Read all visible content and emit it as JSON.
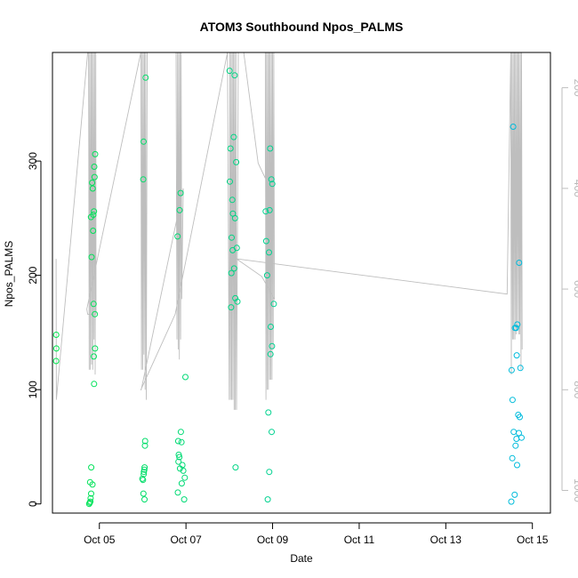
{
  "chart_data": {
    "type": "scatter",
    "title": "ATOM3 Southbound Npos_PALMS",
    "xlabel": "Date",
    "ylabel": "Npos_PALMS",
    "xlim": [
      "2017-10-03T22:00",
      "2017-10-15T10:00"
    ],
    "ylim": [
      -8,
      395
    ],
    "x_ticks": [
      {
        "date": "2017-10-05",
        "label": "Oct 05"
      },
      {
        "date": "2017-10-07",
        "label": "Oct 07"
      },
      {
        "date": "2017-10-09",
        "label": "Oct 09"
      },
      {
        "date": "2017-10-11",
        "label": "Oct 11"
      },
      {
        "date": "2017-10-13",
        "label": "Oct 13"
      },
      {
        "date": "2017-10-15",
        "label": "Oct 15"
      }
    ],
    "y_ticks": [
      0,
      100,
      200,
      300
    ],
    "secondary_axis": {
      "side": "right",
      "reversed": true,
      "ylim": [
        1045,
        130
      ],
      "ticks": [
        200,
        400,
        600,
        800,
        1000
      ],
      "color": "#bebebe"
    },
    "color_scale": [
      "#00e64d",
      "#00b8e6"
    ],
    "points": [
      {
        "x": "2017-10-04T00:05",
        "y": 148
      },
      {
        "x": "2017-10-04T00:10",
        "y": 136
      },
      {
        "x": "2017-10-04T00:02",
        "y": 125
      },
      {
        "x": "2017-10-04T18:20",
        "y": 0
      },
      {
        "x": "2017-10-04T18:40",
        "y": 1
      },
      {
        "x": "2017-10-04T19:00",
        "y": 2
      },
      {
        "x": "2017-10-04T19:10",
        "y": 5
      },
      {
        "x": "2017-10-04T19:25",
        "y": 9
      },
      {
        "x": "2017-10-04T18:50",
        "y": 19
      },
      {
        "x": "2017-10-04T20:10",
        "y": 17
      },
      {
        "x": "2017-10-04T19:30",
        "y": 32
      },
      {
        "x": "2017-10-04T19:20",
        "y": 251
      },
      {
        "x": "2017-10-04T19:40",
        "y": 216
      },
      {
        "x": "2017-10-04T20:00",
        "y": 281
      },
      {
        "x": "2017-10-04T20:20",
        "y": 276
      },
      {
        "x": "2017-10-04T20:40",
        "y": 253
      },
      {
        "x": "2017-10-04T21:00",
        "y": 256
      },
      {
        "x": "2017-10-04T20:30",
        "y": 239
      },
      {
        "x": "2017-10-04T21:20",
        "y": 286
      },
      {
        "x": "2017-10-04T21:10",
        "y": 295
      },
      {
        "x": "2017-10-04T21:40",
        "y": 306
      },
      {
        "x": "2017-10-04T20:50",
        "y": 175
      },
      {
        "x": "2017-10-04T21:30",
        "y": 166
      },
      {
        "x": "2017-10-04T21:35",
        "y": 136
      },
      {
        "x": "2017-10-04T20:55",
        "y": 129
      },
      {
        "x": "2017-10-04T21:05",
        "y": 105
      },
      {
        "x": "2017-10-06T00:20",
        "y": 284
      },
      {
        "x": "2017-10-06T00:30",
        "y": 317
      },
      {
        "x": "2017-10-06T01:40",
        "y": 373
      },
      {
        "x": "2017-10-06T00:10",
        "y": 21
      },
      {
        "x": "2017-10-06T00:40",
        "y": 28
      },
      {
        "x": "2017-10-06T00:55",
        "y": 30
      },
      {
        "x": "2017-10-06T01:05",
        "y": 32
      },
      {
        "x": "2017-10-06T00:25",
        "y": 9
      },
      {
        "x": "2017-10-06T01:00",
        "y": 4
      },
      {
        "x": "2017-10-06T01:20",
        "y": 55
      },
      {
        "x": "2017-10-06T01:15",
        "y": 51
      },
      {
        "x": "2017-10-05T23:50",
        "y": 22
      },
      {
        "x": "2017-10-06T00:35",
        "y": 26
      },
      {
        "x": "2017-10-06T19:20",
        "y": 234
      },
      {
        "x": "2017-10-06T20:30",
        "y": 257
      },
      {
        "x": "2017-10-06T21:00",
        "y": 272
      },
      {
        "x": "2017-10-06T23:40",
        "y": 111
      },
      {
        "x": "2017-10-06T19:40",
        "y": 55
      },
      {
        "x": "2017-10-06T21:10",
        "y": 63
      },
      {
        "x": "2017-10-06T21:30",
        "y": 54
      },
      {
        "x": "2017-10-06T20:00",
        "y": 43
      },
      {
        "x": "2017-10-06T20:20",
        "y": 41
      },
      {
        "x": "2017-10-06T19:50",
        "y": 37
      },
      {
        "x": "2017-10-06T20:40",
        "y": 31
      },
      {
        "x": "2017-10-06T22:00",
        "y": 34
      },
      {
        "x": "2017-10-06T22:30",
        "y": 29
      },
      {
        "x": "2017-10-06T23:20",
        "y": 23
      },
      {
        "x": "2017-10-06T21:40",
        "y": 18
      },
      {
        "x": "2017-10-06T19:30",
        "y": 10
      },
      {
        "x": "2017-10-06T23:00",
        "y": 4
      },
      {
        "x": "2017-10-08T00:10",
        "y": 379
      },
      {
        "x": "2017-10-08T03:00",
        "y": 375
      },
      {
        "x": "2017-10-08T02:30",
        "y": 321
      },
      {
        "x": "2017-10-08T00:40",
        "y": 311
      },
      {
        "x": "2017-10-08T03:50",
        "y": 299
      },
      {
        "x": "2017-10-08T00:20",
        "y": 282
      },
      {
        "x": "2017-10-08T01:40",
        "y": 266
      },
      {
        "x": "2017-10-08T02:00",
        "y": 254
      },
      {
        "x": "2017-10-08T03:10",
        "y": 250
      },
      {
        "x": "2017-10-08T01:20",
        "y": 233
      },
      {
        "x": "2017-10-08T01:50",
        "y": 222
      },
      {
        "x": "2017-10-08T04:10",
        "y": 224
      },
      {
        "x": "2017-10-08T02:40",
        "y": 206
      },
      {
        "x": "2017-10-08T01:10",
        "y": 202
      },
      {
        "x": "2017-10-08T03:20",
        "y": 180
      },
      {
        "x": "2017-10-08T04:30",
        "y": 177
      },
      {
        "x": "2017-10-08T01:00",
        "y": 172
      },
      {
        "x": "2017-10-08T03:30",
        "y": 32
      },
      {
        "x": "2017-10-08T20:10",
        "y": 256
      },
      {
        "x": "2017-10-08T20:30",
        "y": 230
      },
      {
        "x": "2017-10-08T22:40",
        "y": 311
      },
      {
        "x": "2017-10-08T23:20",
        "y": 284
      },
      {
        "x": "2017-10-08T23:50",
        "y": 280
      },
      {
        "x": "2017-10-08T22:20",
        "y": 257
      },
      {
        "x": "2017-10-08T22:00",
        "y": 220
      },
      {
        "x": "2017-10-08T21:00",
        "y": 200
      },
      {
        "x": "2017-10-09T00:40",
        "y": 175
      },
      {
        "x": "2017-10-08T23:00",
        "y": 155
      },
      {
        "x": "2017-10-08T23:40",
        "y": 138
      },
      {
        "x": "2017-10-08T22:50",
        "y": 131
      },
      {
        "x": "2017-10-08T21:40",
        "y": 80
      },
      {
        "x": "2017-10-08T23:30",
        "y": 63
      },
      {
        "x": "2017-10-08T22:10",
        "y": 28
      },
      {
        "x": "2017-10-08T21:20",
        "y": 4
      },
      {
        "x": "2017-10-14T13:20",
        "y": 330
      },
      {
        "x": "2017-10-14T16:40",
        "y": 211
      },
      {
        "x": "2017-10-14T14:20",
        "y": 154
      },
      {
        "x": "2017-10-14T15:00",
        "y": 154
      },
      {
        "x": "2017-10-14T15:40",
        "y": 157
      },
      {
        "x": "2017-10-14T15:20",
        "y": 130
      },
      {
        "x": "2017-10-14T17:20",
        "y": 119
      },
      {
        "x": "2017-10-14T12:30",
        "y": 117
      },
      {
        "x": "2017-10-14T13:00",
        "y": 91
      },
      {
        "x": "2017-10-14T16:10",
        "y": 78
      },
      {
        "x": "2017-10-14T17:00",
        "y": 76
      },
      {
        "x": "2017-10-14T13:40",
        "y": 63
      },
      {
        "x": "2017-10-14T16:30",
        "y": 62
      },
      {
        "x": "2017-10-14T18:00",
        "y": 58
      },
      {
        "x": "2017-10-14T15:10",
        "y": 57
      },
      {
        "x": "2017-10-14T14:40",
        "y": 51
      },
      {
        "x": "2017-10-14T12:50",
        "y": 40
      },
      {
        "x": "2017-10-14T15:30",
        "y": 34
      },
      {
        "x": "2017-10-14T14:10",
        "y": 8
      },
      {
        "x": "2017-10-14T12:20",
        "y": 2
      }
    ],
    "secondary_line": {
      "axis": "right",
      "color": "#bebebe",
      "points": [
        [
          "2017-10-04T00:00",
          540
        ],
        [
          "2017-10-04T00:10",
          820
        ],
        [
          "2017-10-04T17:30",
          130
        ],
        [
          "2017-10-04T18:00",
          130
        ],
        [
          "2017-10-04T18:20",
          760
        ],
        [
          "2017-10-04T18:40",
          130
        ],
        [
          "2017-10-04T19:00",
          760
        ],
        [
          "2017-10-04T19:20",
          130
        ],
        [
          "2017-10-04T19:40",
          750
        ],
        [
          "2017-10-04T20:00",
          130
        ],
        [
          "2017-10-04T20:20",
          760
        ],
        [
          "2017-10-04T20:40",
          130
        ],
        [
          "2017-10-04T21:00",
          700
        ],
        [
          "2017-10-04T21:20",
          130
        ],
        [
          "2017-10-04T21:40",
          770
        ],
        [
          "2017-10-04T22:00",
          130
        ],
        [
          "2017-10-04T22:10",
          650
        ],
        [
          "2017-10-04T17:30",
          650
        ],
        [
          "2017-10-04T17:00",
          640
        ],
        [
          "2017-10-05T23:00",
          130
        ],
        [
          "2017-10-05T23:20",
          760
        ],
        [
          "2017-10-05T23:40",
          130
        ],
        [
          "2017-10-06T00:00",
          760
        ],
        [
          "2017-10-06T00:20",
          130
        ],
        [
          "2017-10-06T00:40",
          730
        ],
        [
          "2017-10-06T01:00",
          130
        ],
        [
          "2017-10-06T01:20",
          800
        ],
        [
          "2017-10-06T01:40",
          130
        ],
        [
          "2017-10-06T02:00",
          820
        ],
        [
          "2017-10-06T02:30",
          130
        ],
        [
          "2017-10-06T18:30",
          130
        ],
        [
          "2017-10-06T19:00",
          700
        ],
        [
          "2017-10-06T19:20",
          130
        ],
        [
          "2017-10-06T19:40",
          720
        ],
        [
          "2017-10-06T20:00",
          130
        ],
        [
          "2017-10-06T20:20",
          740
        ],
        [
          "2017-10-06T20:40",
          130
        ],
        [
          "2017-10-06T21:00",
          700
        ],
        [
          "2017-10-06T21:20",
          130
        ],
        [
          "2017-10-06T21:40",
          620
        ],
        [
          "2017-10-06T22:10",
          480
        ],
        [
          "2017-10-06T22:30",
          400
        ],
        [
          "2017-10-05T23:10",
          800
        ],
        [
          "2017-10-05T23:00",
          800
        ],
        [
          "2017-10-06T18:00",
          650
        ],
        [
          "2017-10-07T23:00",
          130
        ],
        [
          "2017-10-08T00:00",
          820
        ],
        [
          "2017-10-08T00:20",
          130
        ],
        [
          "2017-10-08T00:40",
          820
        ],
        [
          "2017-10-08T01:00",
          130
        ],
        [
          "2017-10-08T01:20",
          820
        ],
        [
          "2017-10-08T01:40",
          130
        ],
        [
          "2017-10-08T02:00",
          820
        ],
        [
          "2017-10-08T02:20",
          130
        ],
        [
          "2017-10-08T02:40",
          840
        ],
        [
          "2017-10-08T03:00",
          130
        ],
        [
          "2017-10-08T03:20",
          840
        ],
        [
          "2017-10-08T03:40",
          130
        ],
        [
          "2017-10-08T04:00",
          840
        ],
        [
          "2017-10-08T05:00",
          130
        ],
        [
          "2017-10-08T08:00",
          130
        ],
        [
          "2017-10-08T16:00",
          350
        ],
        [
          "2017-10-08T20:00",
          380
        ],
        [
          "2017-10-08T20:00",
          130
        ],
        [
          "2017-10-08T20:20",
          820
        ],
        [
          "2017-10-08T20:40",
          130
        ],
        [
          "2017-10-08T21:00",
          800
        ],
        [
          "2017-10-08T21:20",
          130
        ],
        [
          "2017-10-08T21:40",
          800
        ],
        [
          "2017-10-08T22:00",
          130
        ],
        [
          "2017-10-08T22:20",
          780
        ],
        [
          "2017-10-08T22:40",
          130
        ],
        [
          "2017-10-08T23:00",
          780
        ],
        [
          "2017-10-08T23:20",
          130
        ],
        [
          "2017-10-08T23:40",
          780
        ],
        [
          "2017-10-09T00:00",
          130
        ],
        [
          "2017-10-09T00:20",
          720
        ],
        [
          "2017-10-09T00:40",
          130
        ],
        [
          "2017-10-09T01:00",
          620
        ],
        [
          "2017-10-08T18:00",
          575
        ],
        [
          "2017-10-08T04:00",
          540
        ],
        [
          "2017-10-14T10:00",
          610
        ],
        [
          "2017-10-14T12:00",
          130
        ],
        [
          "2017-10-14T12:20",
          770
        ],
        [
          "2017-10-14T12:40",
          130
        ],
        [
          "2017-10-14T13:00",
          700
        ],
        [
          "2017-10-14T13:20",
          130
        ],
        [
          "2017-10-14T13:40",
          700
        ],
        [
          "2017-10-14T14:00",
          130
        ],
        [
          "2017-10-14T14:20",
          700
        ],
        [
          "2017-10-14T14:40",
          130
        ],
        [
          "2017-10-14T15:00",
          690
        ],
        [
          "2017-10-14T15:20",
          130
        ],
        [
          "2017-10-14T15:40",
          680
        ],
        [
          "2017-10-14T16:00",
          130
        ],
        [
          "2017-10-14T16:20",
          690
        ],
        [
          "2017-10-14T16:40",
          130
        ],
        [
          "2017-10-14T17:00",
          690
        ],
        [
          "2017-10-14T17:20",
          130
        ],
        [
          "2017-10-14T17:40",
          760
        ],
        [
          "2017-10-14T18:00",
          130
        ],
        [
          "2017-10-14T18:20",
          720
        ]
      ]
    }
  }
}
